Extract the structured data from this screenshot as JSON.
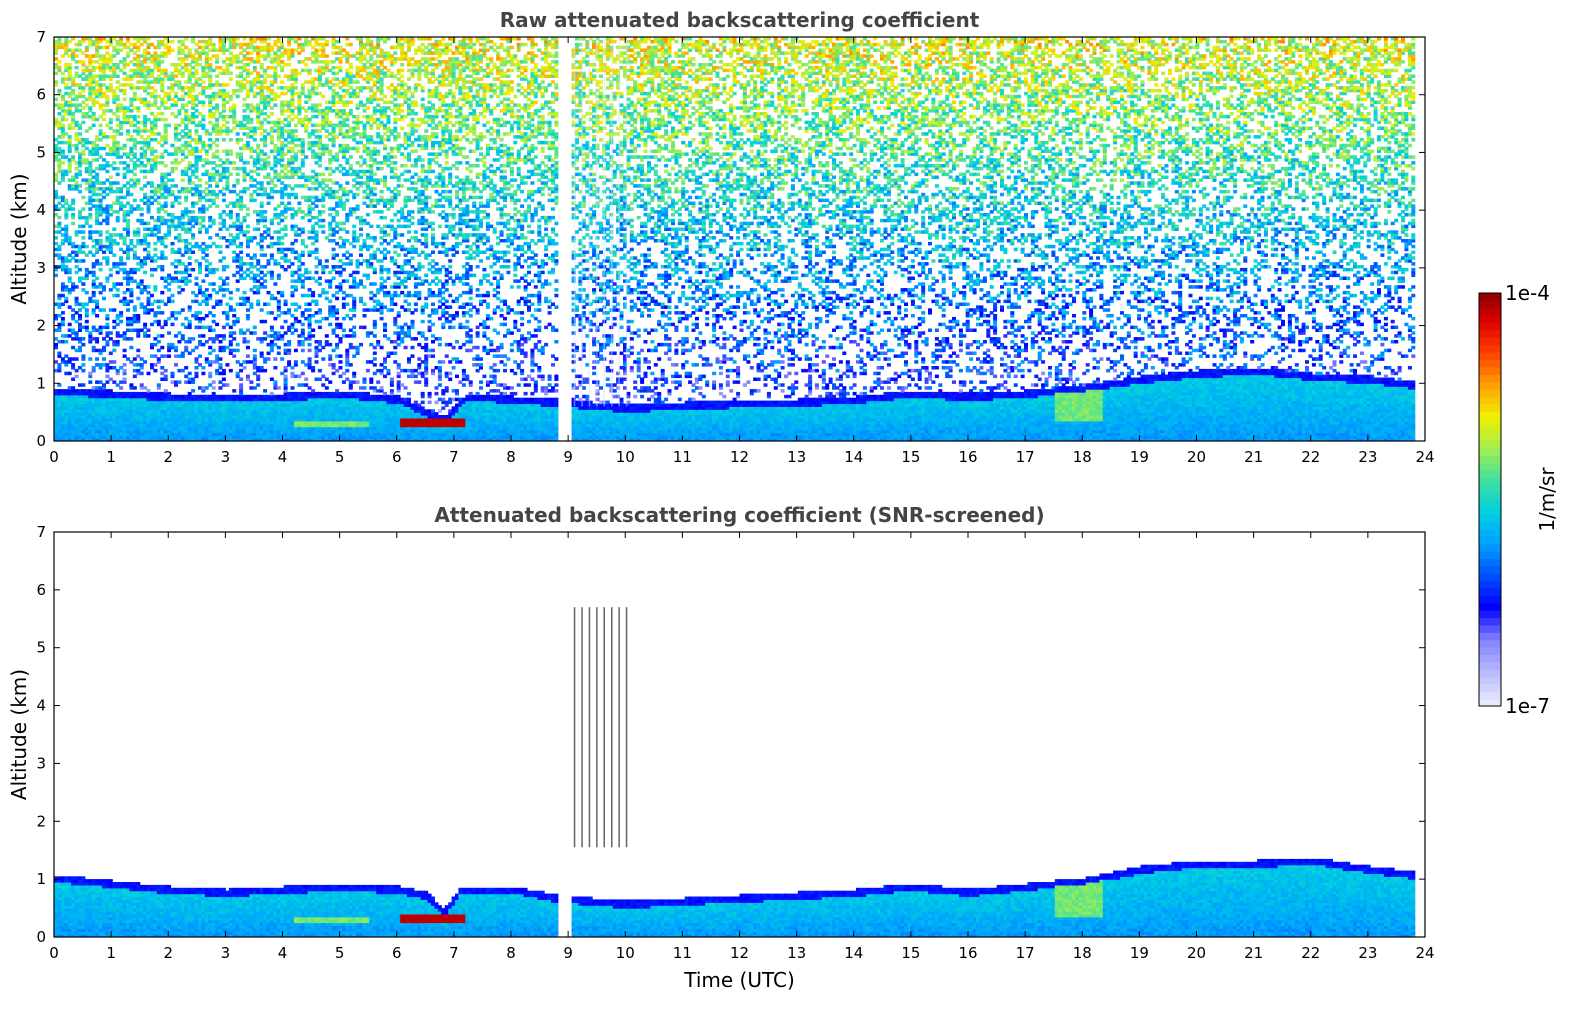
{
  "chart_data": [
    {
      "type": "heatmap",
      "title": "Raw attenuated backscattering coefficient",
      "xlabel": "",
      "ylabel": "Altitude (km)",
      "xlim": [
        0,
        24
      ],
      "ylim": [
        0,
        7
      ],
      "xticks": [
        "0",
        "1",
        "2",
        "3",
        "4",
        "5",
        "6",
        "7",
        "8",
        "9",
        "10",
        "11",
        "12",
        "13",
        "14",
        "15",
        "16",
        "17",
        "18",
        "19",
        "20",
        "21",
        "22",
        "23",
        "24"
      ],
      "yticks": [
        "0",
        "1",
        "2",
        "3",
        "4",
        "5",
        "6",
        "7"
      ],
      "data_gaps": [
        [
          8.8,
          9.05
        ]
      ],
      "data_end": 23.8,
      "boundary_layer_top_km": [
        [
          0,
          0.9
        ],
        [
          2,
          0.8
        ],
        [
          4,
          0.8
        ],
        [
          5,
          0.85
        ],
        [
          6,
          0.75
        ],
        [
          6.8,
          0.4
        ],
        [
          7.2,
          0.8
        ],
        [
          8.8,
          0.7
        ],
        [
          10,
          0.6
        ],
        [
          11,
          0.65
        ],
        [
          13,
          0.7
        ],
        [
          14,
          0.75
        ],
        [
          15,
          0.85
        ],
        [
          16,
          0.8
        ],
        [
          17,
          0.85
        ],
        [
          18,
          0.95
        ],
        [
          19,
          1.1
        ],
        [
          20,
          1.2
        ],
        [
          21,
          1.25
        ],
        [
          22,
          1.15
        ],
        [
          23,
          1.1
        ],
        [
          23.8,
          1.0
        ]
      ],
      "strong_layer": {
        "x_start": 6.05,
        "x_end": 7.15,
        "altitude_km": 0.3
      }
    },
    {
      "type": "heatmap",
      "title": "Attenuated backscattering coefficient (SNR-screened)",
      "xlabel": "Time (UTC)",
      "ylabel": "Altitude (km)",
      "xlim": [
        0,
        24
      ],
      "ylim": [
        0,
        7
      ],
      "xticks": [
        "0",
        "1",
        "2",
        "3",
        "4",
        "5",
        "6",
        "7",
        "8",
        "9",
        "10",
        "11",
        "12",
        "13",
        "14",
        "15",
        "16",
        "17",
        "18",
        "19",
        "20",
        "21",
        "22",
        "23",
        "24"
      ],
      "yticks": [
        "0",
        "1",
        "2",
        "3",
        "4",
        "5",
        "6",
        "7"
      ],
      "data_gaps": [
        [
          8.8,
          9.05
        ]
      ],
      "data_end": 23.8,
      "boundary_layer_top_km": [
        [
          0,
          1.05
        ],
        [
          1,
          0.95
        ],
        [
          2,
          0.85
        ],
        [
          3,
          0.8
        ],
        [
          4,
          0.85
        ],
        [
          5,
          0.9
        ],
        [
          6,
          0.85
        ],
        [
          6.5,
          0.75
        ],
        [
          6.8,
          0.45
        ],
        [
          7.1,
          0.85
        ],
        [
          8,
          0.85
        ],
        [
          8.8,
          0.7
        ],
        [
          10,
          0.6
        ],
        [
          11,
          0.65
        ],
        [
          12,
          0.7
        ],
        [
          13,
          0.75
        ],
        [
          14,
          0.8
        ],
        [
          15,
          0.9
        ],
        [
          16,
          0.8
        ],
        [
          17,
          0.9
        ],
        [
          18,
          1.0
        ],
        [
          19,
          1.2
        ],
        [
          20,
          1.3
        ],
        [
          21,
          1.3
        ],
        [
          22,
          1.35
        ],
        [
          23,
          1.2
        ],
        [
          23.8,
          1.1
        ]
      ],
      "strong_layer": {
        "x_start": 6.05,
        "x_end": 7.15,
        "altitude_km": 0.3
      }
    }
  ],
  "colorbar": {
    "max_label": "1e-4",
    "min_label": "1e-7",
    "unit_label": "1/m/sr",
    "colors": [
      "#e8e8ff",
      "#b8b8ff",
      "#8080ff",
      "#0000ff",
      "#0050ff",
      "#00a0ff",
      "#00d0e0",
      "#40e0a0",
      "#a0ee50",
      "#f0f000",
      "#ffa000",
      "#ff4000",
      "#e00000",
      "#800000"
    ]
  }
}
